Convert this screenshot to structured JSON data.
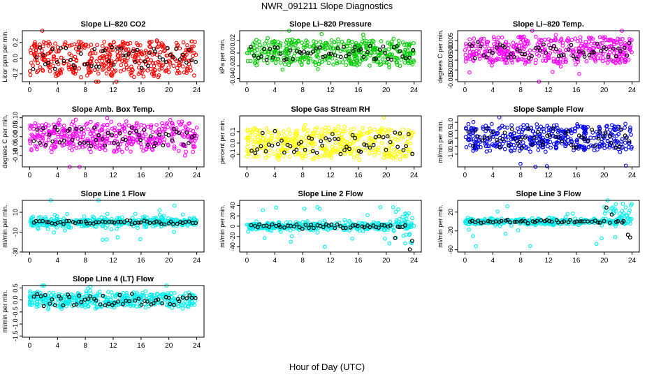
{
  "figure": {
    "title": "NWR_091211  Slope Diagnostics",
    "xlabel": "Hour of Day (UTC)"
  },
  "chart_data": [
    {
      "type": "scatter",
      "title": "Slope Li–820 CO2",
      "ylabel": "Licor ppm per min.",
      "color": "#ff0000",
      "xlim": [
        0,
        24
      ],
      "xticks": [
        0,
        4,
        8,
        12,
        16,
        20,
        24
      ],
      "ylim": [
        -0.3,
        0.35
      ],
      "yticks": [
        -0.2,
        0.0,
        0.2
      ],
      "ytick_labels": [
        "-0.2",
        "0.0",
        "0.2"
      ],
      "points_note": "~450 colored points spread roughly uniformly within ±0.25 across 0–24 h; ~60 black points within ±0.15"
    },
    {
      "type": "scatter",
      "title": "Slope Li–820 Pressure",
      "ylabel": "kPa per min.",
      "color": "#00cc00",
      "xlim": [
        0,
        24
      ],
      "xticks": [
        0,
        4,
        8,
        12,
        16,
        20,
        24
      ],
      "ylim": [
        -0.045,
        0.035
      ],
      "yticks": [
        -0.04,
        -0.02,
        0.0,
        0.02
      ],
      "ytick_labels": [
        "-0.04",
        "-0.02",
        "0.00",
        "0.02"
      ],
      "points_note": "~450 colored points within ±0.02 with outliers to ±0.04; black points within ±0.012"
    },
    {
      "type": "scatter",
      "title": "Slope Li–820 Temp.",
      "ylabel": "degrees C per min.",
      "color": "#ff00ff",
      "xlim": [
        0,
        24
      ],
      "xticks": [
        0,
        4,
        8,
        12,
        16,
        20,
        24
      ],
      "ylim": [
        -0.016,
        0.01
      ],
      "yticks": [
        -0.015,
        -0.01,
        -0.005,
        0.0,
        0.005
      ],
      "ytick_labels": [
        "-0.015",
        "-0.010",
        "-0.005",
        "0.000",
        "0.005"
      ],
      "points_note": "~450 colored points within -0.006..0.008; black points within ±0.004"
    },
    {
      "type": "scatter",
      "title": "Slope Amb. Box Temp.",
      "ylabel": "degrees C per min.",
      "color": "#ff00ff",
      "xlim": [
        0,
        24
      ],
      "xticks": [
        0,
        4,
        8,
        12,
        16,
        20,
        24
      ],
      "ylim": [
        -0.16,
        0.11
      ],
      "yticks": [
        -0.1,
        -0.05,
        0.0,
        0.05,
        0.1
      ],
      "ytick_labels": [
        "-0.10",
        "-0.05",
        "0.00",
        "0.05",
        "0.10"
      ],
      "points_note": "~450 colored points within ±0.08; black points within ±0.05"
    },
    {
      "type": "scatter",
      "title": "Slope Gas Stream RH",
      "ylabel": "percent per min.",
      "color": "#ffff00",
      "xlim": [
        0,
        24
      ],
      "xticks": [
        0,
        4,
        8,
        12,
        16,
        20,
        24
      ],
      "ylim": [
        -0.21,
        0.24
      ],
      "yticks": [
        -0.1,
        0.0,
        0.1
      ],
      "ytick_labels": [
        "-0.1",
        "0.0",
        "0.1"
      ],
      "points_note": "~450 colored points within ±0.15; black points within ±0.15"
    },
    {
      "type": "scatter",
      "title": "Slope Sample Flow",
      "ylabel": "ml/min per min.",
      "color": "#0000ee",
      "xlim": [
        0,
        24
      ],
      "xticks": [
        0,
        4,
        8,
        12,
        16,
        20,
        24
      ],
      "ylim": [
        -1.8,
        1.4
      ],
      "yticks": [
        -1.0,
        -0.5,
        0.0,
        0.5,
        1.0
      ],
      "ytick_labels": [
        "-1.0",
        "-0.5",
        "0.0",
        "0.5",
        "1.0"
      ],
      "points_note": "~450 colored points within ±0.8; black points within ±0.6"
    },
    {
      "type": "scatter",
      "title": "Slope Line 1 Flow",
      "ylabel": "ml/min per min.",
      "color": "#00eeee",
      "xlim": [
        0,
        24
      ],
      "xticks": [
        0,
        4,
        8,
        12,
        16,
        20,
        24
      ],
      "ylim": [
        -30,
        22
      ],
      "yticks": [
        -30,
        -10,
        10
      ],
      "ytick_labels": [
        "-30",
        "-10",
        "10"
      ],
      "points_note": "colored points clustered near 0 with outliers to ±25; black points near 0"
    },
    {
      "type": "scatter",
      "title": "Slope Line 2 Flow",
      "ylabel": "ml/min per min.",
      "color": "#00eeee",
      "xlim": [
        0,
        24
      ],
      "xticks": [
        0,
        4,
        8,
        12,
        16,
        20,
        24
      ],
      "ylim": [
        -50,
        50
      ],
      "yticks": [
        -40,
        -20,
        0,
        20,
        40
      ],
      "ytick_labels": [
        "-40",
        "-20",
        "0",
        "20",
        "40"
      ],
      "points_note": "colored points clustered near 0, spreading to ±40 after 20 h; black points near 0, spread after 20 h"
    },
    {
      "type": "scatter",
      "title": "Slope Line 3 Flow",
      "ylabel": "ml/min per min.",
      "color": "#00eeee",
      "xlim": [
        0,
        24
      ],
      "xticks": [
        0,
        4,
        8,
        12,
        16,
        20,
        24
      ],
      "ylim": [
        -65,
        45
      ],
      "yticks": [
        -60,
        -20,
        20
      ],
      "ytick_labels": [
        "-60",
        "-20",
        "20"
      ],
      "points_note": "colored points clustered near 0, spreading to +35 after 20 h; black points near 0 with outliers to ±55 after 20 h"
    },
    {
      "type": "scatter",
      "title": "Slope Line 4 (LT) Flow",
      "ylabel": "ml/min per min.",
      "color": "#00eeee",
      "xlim": [
        0,
        24
      ],
      "xticks": [
        0,
        4,
        8,
        12,
        16,
        20,
        24
      ],
      "ylim": [
        -1.55,
        0.6
      ],
      "yticks": [
        -1.5,
        -1.0,
        -0.5,
        0.0,
        0.5
      ],
      "ytick_labels": [
        "-1.5",
        "-1.0",
        "-0.5",
        "0.0",
        "0.5"
      ],
      "points_note": "colored points within ±0.3 with outliers to -1.5; black points within ±0.25"
    }
  ]
}
